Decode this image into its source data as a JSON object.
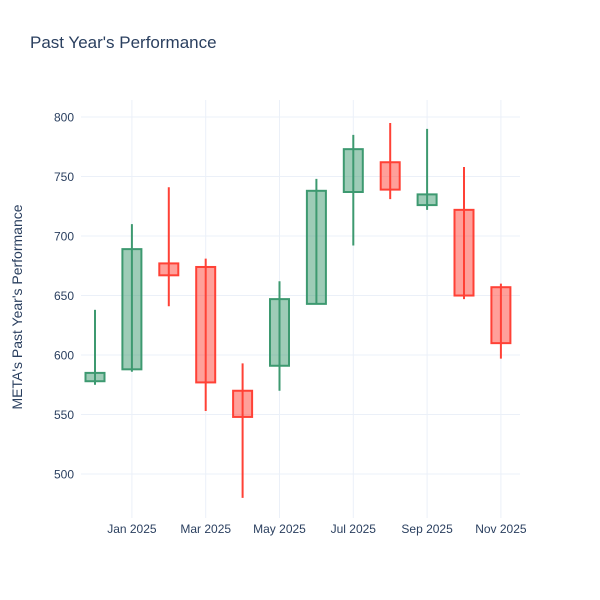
{
  "title": "Past Year's Performance",
  "chart_data": {
    "type": "candlestick",
    "title": "Past Year's Performance",
    "xlabel": "",
    "ylabel": "META's Past Year's Performance",
    "x_tick_labels": [
      "Jan 2025",
      "Mar 2025",
      "May 2025",
      "Jul 2025",
      "Sep 2025",
      "Nov 2025"
    ],
    "y_ticks": [
      500,
      550,
      600,
      650,
      700,
      750,
      800
    ],
    "ylim": [
      465.6,
      814.3
    ],
    "grid": "on",
    "legend": "none",
    "ohlc": [
      {
        "month": "Dec 2024",
        "open": 578,
        "high": 638,
        "low": 575,
        "close": 585
      },
      {
        "month": "Jan 2025",
        "open": 588,
        "high": 710,
        "low": 586,
        "close": 689
      },
      {
        "month": "Feb 2025",
        "open": 677,
        "high": 741,
        "low": 641,
        "close": 667
      },
      {
        "month": "Mar 2025",
        "open": 674,
        "high": 681,
        "low": 553,
        "close": 577
      },
      {
        "month": "Apr 2025",
        "open": 570,
        "high": 593,
        "low": 480,
        "close": 548
      },
      {
        "month": "May 2025",
        "open": 591,
        "high": 662,
        "low": 570,
        "close": 647
      },
      {
        "month": "Jun 2025",
        "open": 643,
        "high": 748,
        "low": 643,
        "close": 738
      },
      {
        "month": "Jul 2025",
        "open": 737,
        "high": 785,
        "low": 692,
        "close": 773
      },
      {
        "month": "Aug 2025",
        "open": 762,
        "high": 795,
        "low": 731,
        "close": 739
      },
      {
        "month": "Sep 2025",
        "open": 726,
        "high": 790,
        "low": 722,
        "close": 735
      },
      {
        "month": "Oct 2025",
        "open": 722,
        "high": 758,
        "low": 647,
        "close": 650
      },
      {
        "month": "Nov 2025",
        "open": 657,
        "high": 660,
        "low": 597,
        "close": 610
      }
    ],
    "colors": {
      "increasing": "#3D9970",
      "decreasing": "#FF4136",
      "increasing_fill": "rgba(61,153,112,0.5)",
      "decreasing_fill": "rgba(255,65,54,0.5)",
      "grid": "#EBF0F8",
      "text": "#2a3f5f",
      "background": "#ffffff"
    }
  }
}
